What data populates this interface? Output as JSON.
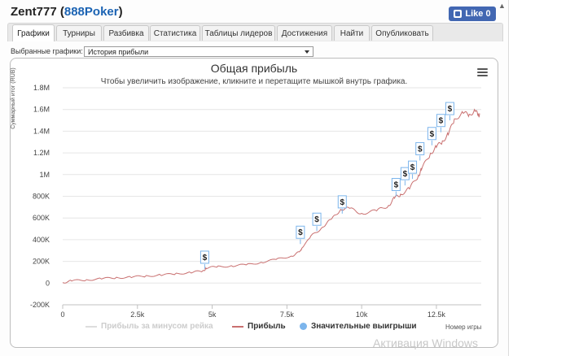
{
  "header": {
    "player": "Zent777",
    "site": "888Poker",
    "like_label": "Like 0"
  },
  "tabs": [
    {
      "label": "Графики",
      "active": true
    },
    {
      "label": "Турниры",
      "active": false
    },
    {
      "label": "Разбивка",
      "active": false
    },
    {
      "label": "Статистика",
      "active": false
    },
    {
      "label": "Таблицы лидеров",
      "active": false
    },
    {
      "label": "Достижения",
      "active": false
    },
    {
      "label": "Найти",
      "active": false
    },
    {
      "label": "Опубликовать",
      "active": false
    }
  ],
  "selector": {
    "label": "Выбранные графики:",
    "value": "История прибыли"
  },
  "chart": {
    "title": "Общая прибыль",
    "subtitle": "Чтобы увеличить изображение, кликните и перетащите мышкой внутрь графика.",
    "ylabel": "Суммарный итог (RUB)",
    "xlabel": "Номер игры"
  },
  "legend": {
    "series1": "Прибыль за минусом рейка",
    "series2": "Прибыль",
    "series3": "Значительные выигрыши"
  },
  "watermark": "Активация Windows",
  "chart_data": {
    "type": "line",
    "title": "Общая прибыль",
    "xlabel": "Номер игры",
    "ylabel": "Суммарный итог (RUB)",
    "xlim": [
      0,
      14000
    ],
    "ylim": [
      -200000,
      1800000
    ],
    "xticks": [
      "0",
      "2.5k",
      "5k",
      "7.5k",
      "10k",
      "12.5k"
    ],
    "xtick_values": [
      0,
      2500,
      5000,
      7500,
      10000,
      12500
    ],
    "yticks": [
      "-200K",
      "0",
      "200K",
      "400K",
      "600K",
      "800K",
      "1M",
      "1.2M",
      "1.4M",
      "1.6M",
      "1.8M"
    ],
    "ytick_values": [
      -200000,
      0,
      200000,
      400000,
      600000,
      800000,
      1000000,
      1200000,
      1400000,
      1600000,
      1800000
    ],
    "grid": "horizontal",
    "legend_position": "bottom",
    "series": [
      {
        "name": "Прибыль",
        "color": "#c97070",
        "x": [
          0,
          300,
          800,
          1300,
          1800,
          2300,
          2800,
          3300,
          3800,
          4300,
          4700,
          4800,
          5200,
          5700,
          6200,
          6700,
          7200,
          7700,
          7950,
          8000,
          8300,
          8700,
          9000,
          9300,
          9600,
          10000,
          10500,
          10900,
          11100,
          11300,
          11600,
          11900,
          12000,
          12300,
          12500,
          12700,
          12900,
          13100,
          13400,
          13600,
          13800,
          13900,
          13950
        ],
        "y": [
          5000,
          20000,
          30000,
          40000,
          50000,
          55000,
          65000,
          75000,
          85000,
          100000,
          110000,
          140000,
          150000,
          160000,
          170000,
          195000,
          220000,
          255000,
          290000,
          330000,
          420000,
          530000,
          580000,
          690000,
          680000,
          650000,
          660000,
          720000,
          780000,
          820000,
          870000,
          990000,
          1050000,
          1190000,
          1260000,
          1300000,
          1380000,
          1500000,
          1580000,
          1540000,
          1600000,
          1540000,
          1560000
        ]
      },
      {
        "name": "Значительные выигрыши",
        "color": "#7cb5ec",
        "x": [
          4750,
          7950,
          8500,
          9350,
          11150,
          11450,
          11700,
          11950,
          12350,
          12650,
          12950
        ],
        "y": [
          130000,
          360000,
          480000,
          640000,
          800000,
          900000,
          960000,
          1130000,
          1270000,
          1390000,
          1500000
        ]
      }
    ]
  }
}
